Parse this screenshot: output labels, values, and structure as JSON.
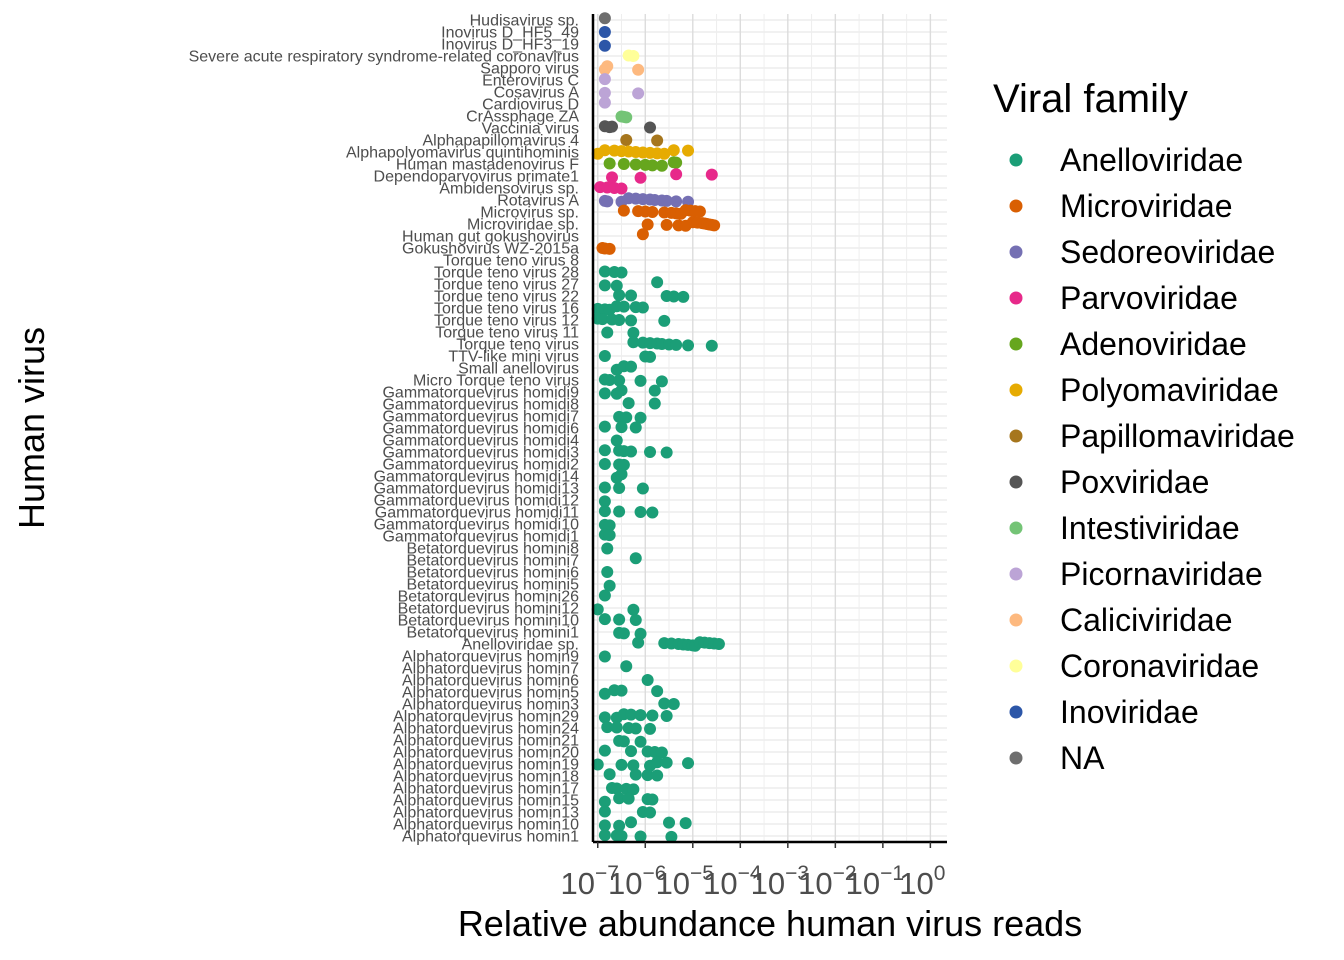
{
  "chart_data": {
    "type": "scatter",
    "title": "",
    "xlabel": "Relative abundance human virus reads",
    "ylabel": "Human virus",
    "x_scale": "log10",
    "xlim_log10": [
      -7.1,
      0.35
    ],
    "x_ticks": [
      {
        "base": "10",
        "exp": "−7",
        "log10": -7
      },
      {
        "base": "10",
        "exp": "−6",
        "log10": -6
      },
      {
        "base": "10",
        "exp": "−5",
        "log10": -5
      },
      {
        "base": "10",
        "exp": "−4",
        "log10": -4
      },
      {
        "base": "10",
        "exp": "−3",
        "log10": -3
      },
      {
        "base": "10",
        "exp": "−2",
        "log10": -2
      },
      {
        "base": "10",
        "exp": "−1",
        "log10": -1
      },
      {
        "base": "10",
        "exp": "0",
        "log10": 0
      }
    ],
    "grid": true,
    "legend": {
      "title": "Viral family",
      "placement": "right"
    },
    "families": [
      {
        "name": "Anelloviridae",
        "color": "#1B9E77"
      },
      {
        "name": "Microviridae",
        "color": "#D95F02"
      },
      {
        "name": "Sedoreoviridae",
        "color": "#7570B3"
      },
      {
        "name": "Parvoviridae",
        "color": "#E7298A"
      },
      {
        "name": "Adenoviridae",
        "color": "#66A61E"
      },
      {
        "name": "Polyomaviridae",
        "color": "#E6AB02"
      },
      {
        "name": "Papillomaviridae",
        "color": "#A6761D"
      },
      {
        "name": "Poxviridae",
        "color": "#555555"
      },
      {
        "name": "Intestiviridae",
        "color": "#74C476"
      },
      {
        "name": "Picornaviridae",
        "color": "#BCA4D6"
      },
      {
        "name": "Caliciviridae",
        "color": "#FDB97F"
      },
      {
        "name": "Coronaviridae",
        "color": "#FFFF99"
      },
      {
        "name": "Inoviridae",
        "color": "#2C56A8"
      },
      {
        "name": "NA",
        "color": "#6E6E6E"
      }
    ],
    "viruses": [
      {
        "name": "Hudisavirus sp.",
        "family": "NA",
        "values": [
          -6.85
        ]
      },
      {
        "name": "Inovirus D_HF5_49",
        "family": "Inoviridae",
        "values": [
          -6.85
        ]
      },
      {
        "name": "Inovirus D_HF3_19",
        "family": "Inoviridae",
        "values": [
          -6.85
        ]
      },
      {
        "name": "Severe acute respiratory syndrome-related coronavirus",
        "family": "Coronaviridae",
        "values": [
          -6.35,
          -6.25
        ]
      },
      {
        "name": "Sapporo virus",
        "family": "Caliciviridae",
        "values": [
          -6.85,
          -6.15,
          -6.8
        ]
      },
      {
        "name": "Enterovirus C",
        "family": "Picornaviridae",
        "values": [
          -6.85
        ]
      },
      {
        "name": "Cosavirus A",
        "family": "Picornaviridae",
        "values": [
          -6.85,
          -6.15
        ]
      },
      {
        "name": "Cardiovirus D",
        "family": "Picornaviridae",
        "values": [
          -6.85
        ]
      },
      {
        "name": "CrAssphage ZA",
        "family": "Intestiviridae",
        "values": [
          -6.5,
          -6.45,
          -6.4
        ]
      },
      {
        "name": "Vaccinia virus",
        "family": "Poxviridae",
        "values": [
          -6.85,
          -6.7,
          -6.75,
          -5.9
        ]
      },
      {
        "name": "Alphapapillomavirus 4",
        "family": "Papillomaviridae",
        "values": [
          -6.4,
          -5.75
        ]
      },
      {
        "name": "Alphapolyomavirus quintihominis",
        "family": "Polyomaviridae",
        "values": [
          -7.0,
          -6.85,
          -6.65,
          -6.5,
          -6.35,
          -6.2,
          -6.05,
          -5.9,
          -5.75,
          -5.6,
          -5.4,
          -5.1
        ]
      },
      {
        "name": "Human mastadenovirus F",
        "family": "Adenoviridae",
        "values": [
          -6.75,
          -6.45,
          -6.2,
          -6.0,
          -5.85,
          -5.65,
          -5.4,
          -5.35
        ]
      },
      {
        "name": "Dependoparvovirus primate1",
        "family": "Parvoviridae",
        "values": [
          -6.7,
          -6.1,
          -5.35,
          -4.6
        ]
      },
      {
        "name": "Ambidensovirus sp.",
        "family": "Parvoviridae",
        "values": [
          -6.95,
          -6.8,
          -6.65,
          -6.5
        ]
      },
      {
        "name": "Rotavirus A",
        "family": "Sedoreoviridae",
        "values": [
          -6.85,
          -6.8,
          -6.5,
          -6.35,
          -6.2,
          -6.05,
          -5.9,
          -5.8,
          -5.65,
          -5.55,
          -5.35,
          -5.1
        ]
      },
      {
        "name": "Microvirus sp.",
        "family": "Microviridae",
        "values": [
          -6.45,
          -6.15,
          -6.0,
          -5.85,
          -5.6,
          -5.45,
          -5.35,
          -5.25,
          -5.15,
          -5.05,
          -4.95,
          -4.85
        ]
      },
      {
        "name": "Microviridae sp.",
        "family": "Microviridae",
        "values": [
          -5.95,
          -5.55,
          -5.3,
          -5.15,
          -5.0,
          -4.9,
          -4.8,
          -4.75,
          -4.7,
          -4.65,
          -4.6,
          -4.55
        ]
      },
      {
        "name": "Human gut gokushovirus",
        "family": "Microviridae",
        "values": [
          -6.05
        ]
      },
      {
        "name": "Gokushovirus WZ-2015a",
        "family": "Microviridae",
        "values": [
          -6.9,
          -6.85,
          -6.75
        ]
      },
      {
        "name": "Torque teno virus 8",
        "family": "Anelloviridae",
        "values": []
      },
      {
        "name": "Torque teno virus 28",
        "family": "Anelloviridae",
        "values": [
          -6.85,
          -6.65,
          -6.5
        ]
      },
      {
        "name": "Torque teno virus 27",
        "family": "Anelloviridae",
        "values": [
          -6.85,
          -6.6,
          -5.75
        ]
      },
      {
        "name": "Torque teno virus 22",
        "family": "Anelloviridae",
        "values": [
          -6.55,
          -6.3,
          -5.55,
          -5.4,
          -5.2
        ]
      },
      {
        "name": "Torque teno virus 16",
        "family": "Anelloviridae",
        "values": [
          -7.0,
          -6.85,
          -6.75,
          -6.6,
          -6.45,
          -6.2,
          -6.05
        ]
      },
      {
        "name": "Torque teno virus 12",
        "family": "Anelloviridae",
        "values": [
          -7.0,
          -6.9,
          -6.7,
          -6.55,
          -6.3,
          -5.6
        ]
      },
      {
        "name": "Torque teno virus 11",
        "family": "Anelloviridae",
        "values": [
          -6.8,
          -6.25
        ]
      },
      {
        "name": "Torque teno virus",
        "family": "Anelloviridae",
        "values": [
          -6.25,
          -6.05,
          -5.9,
          -5.75,
          -5.65,
          -5.5,
          -5.35,
          -5.1,
          -4.6
        ]
      },
      {
        "name": "TTV-like mini virus",
        "family": "Anelloviridae",
        "values": [
          -6.85,
          -6.0,
          -5.9
        ]
      },
      {
        "name": "Small anellovirus",
        "family": "Anelloviridae",
        "values": [
          -6.6,
          -6.45,
          -6.3
        ]
      },
      {
        "name": "Micro Torque teno virus",
        "family": "Anelloviridae",
        "values": [
          -6.85,
          -6.75,
          -6.55,
          -6.1,
          -5.65
        ]
      },
      {
        "name": "Gammatorquevirus homidi9",
        "family": "Anelloviridae",
        "values": [
          -6.85,
          -6.6,
          -6.5,
          -5.8
        ]
      },
      {
        "name": "Gammatorquevirus homidi8",
        "family": "Anelloviridae",
        "values": [
          -6.35,
          -5.8
        ]
      },
      {
        "name": "Gammatorquevirus homidi7",
        "family": "Anelloviridae",
        "values": [
          -6.55,
          -6.4,
          -6.1
        ]
      },
      {
        "name": "Gammatorquevirus homidi6",
        "family": "Anelloviridae",
        "values": [
          -6.85,
          -6.5,
          -6.2
        ]
      },
      {
        "name": "Gammatorquevirus homidi4",
        "family": "Anelloviridae",
        "values": [
          -6.6
        ]
      },
      {
        "name": "Gammatorquevirus homidi3",
        "family": "Anelloviridae",
        "values": [
          -6.85,
          -6.55,
          -6.45,
          -6.3,
          -5.9,
          -5.55
        ]
      },
      {
        "name": "Gammatorquevirus homidi2",
        "family": "Anelloviridae",
        "values": [
          -6.85,
          -6.55,
          -6.45
        ]
      },
      {
        "name": "Gammatorquevirus homidi14",
        "family": "Anelloviridae",
        "values": [
          -6.6,
          -6.5
        ]
      },
      {
        "name": "Gammatorquevirus homidi13",
        "family": "Anelloviridae",
        "values": [
          -6.85,
          -6.55,
          -6.05
        ]
      },
      {
        "name": "Gammatorquevirus homidi12",
        "family": "Anelloviridae",
        "values": [
          -6.85
        ]
      },
      {
        "name": "Gammatorquevirus homidi11",
        "family": "Anelloviridae",
        "values": [
          -6.85,
          -6.55,
          -6.1,
          -5.85
        ]
      },
      {
        "name": "Gammatorquevirus homidi10",
        "family": "Anelloviridae",
        "values": [
          -6.85,
          -6.75
        ]
      },
      {
        "name": "Gammatorquevirus homidi1",
        "family": "Anelloviridae",
        "values": [
          -6.85,
          -6.75
        ]
      },
      {
        "name": "Betatorquevirus homini8",
        "family": "Anelloviridae",
        "values": [
          -6.8
        ]
      },
      {
        "name": "Betatorquevirus homini7",
        "family": "Anelloviridae",
        "values": [
          -6.2
        ]
      },
      {
        "name": "Betatorquevirus homini6",
        "family": "Anelloviridae",
        "values": [
          -6.8
        ]
      },
      {
        "name": "Betatorquevirus homini5",
        "family": "Anelloviridae",
        "values": [
          -6.75
        ]
      },
      {
        "name": "Betatorquevirus homini26",
        "family": "Anelloviridae",
        "values": [
          -6.85
        ]
      },
      {
        "name": "Betatorquevirus homini12",
        "family": "Anelloviridae",
        "values": [
          -7.0,
          -6.25
        ]
      },
      {
        "name": "Betatorquevirus homini10",
        "family": "Anelloviridae",
        "values": [
          -6.85,
          -6.55,
          -6.2
        ]
      },
      {
        "name": "Betatorquevirus homini1",
        "family": "Anelloviridae",
        "values": [
          -6.55,
          -6.45,
          -6.1
        ]
      },
      {
        "name": "Anelloviridae sp.",
        "family": "Anelloviridae",
        "values": [
          -6.15,
          -5.6,
          -5.45,
          -5.3,
          -5.2,
          -5.1,
          -5.0,
          -4.95,
          -4.85,
          -4.75,
          -4.65,
          -4.55,
          -4.45
        ]
      },
      {
        "name": "Alphatorquevirus homin9",
        "family": "Anelloviridae",
        "values": [
          -6.85
        ]
      },
      {
        "name": "Alphatorquevirus homin7",
        "family": "Anelloviridae",
        "values": [
          -6.4
        ]
      },
      {
        "name": "Alphatorquevirus homin6",
        "family": "Anelloviridae",
        "values": [
          -5.95
        ]
      },
      {
        "name": "Alphatorquevirus homin5",
        "family": "Anelloviridae",
        "values": [
          -6.85,
          -6.65,
          -6.5,
          -5.75
        ]
      },
      {
        "name": "Alphatorquevirus homin3",
        "family": "Anelloviridae",
        "values": [
          -5.6,
          -5.4
        ]
      },
      {
        "name": "Alphatorquevirus homin29",
        "family": "Anelloviridae",
        "values": [
          -6.85,
          -6.6,
          -6.45,
          -6.3,
          -6.1,
          -5.85,
          -5.55
        ]
      },
      {
        "name": "Alphatorquevirus homin24",
        "family": "Anelloviridae",
        "values": [
          -6.8,
          -6.6,
          -6.35,
          -6.2,
          -5.9
        ]
      },
      {
        "name": "Alphatorquevirus homin21",
        "family": "Anelloviridae",
        "values": [
          -6.55,
          -6.45,
          -6.1
        ]
      },
      {
        "name": "Alphatorquevirus homin20",
        "family": "Anelloviridae",
        "values": [
          -6.85,
          -6.3,
          -5.95,
          -5.8,
          -5.65
        ]
      },
      {
        "name": "Alphatorquevirus homin19",
        "family": "Anelloviridae",
        "values": [
          -7.0,
          -6.5,
          -6.25,
          -5.9,
          -5.75,
          -5.55,
          -5.1
        ]
      },
      {
        "name": "Alphatorquevirus homin18",
        "family": "Anelloviridae",
        "values": [
          -6.75,
          -6.2,
          -5.95,
          -5.75
        ]
      },
      {
        "name": "Alphatorquevirus homin17",
        "family": "Anelloviridae",
        "values": [
          -6.7,
          -6.6,
          -6.4,
          -6.25
        ]
      },
      {
        "name": "Alphatorquevirus homin15",
        "family": "Anelloviridae",
        "values": [
          -6.85,
          -6.55,
          -6.35,
          -5.95,
          -5.85
        ]
      },
      {
        "name": "Alphatorquevirus homin13",
        "family": "Anelloviridae",
        "values": [
          -6.85,
          -6.05,
          -5.9
        ]
      },
      {
        "name": "Alphatorquevirus homin10",
        "family": "Anelloviridae",
        "values": [
          -6.85,
          -6.55,
          -6.3,
          -5.5,
          -5.15
        ]
      },
      {
        "name": "Alphatorquevirus homin1",
        "family": "Anelloviridae",
        "values": [
          -6.85,
          -6.6,
          -6.5,
          -6.1,
          -5.45
        ]
      }
    ]
  }
}
